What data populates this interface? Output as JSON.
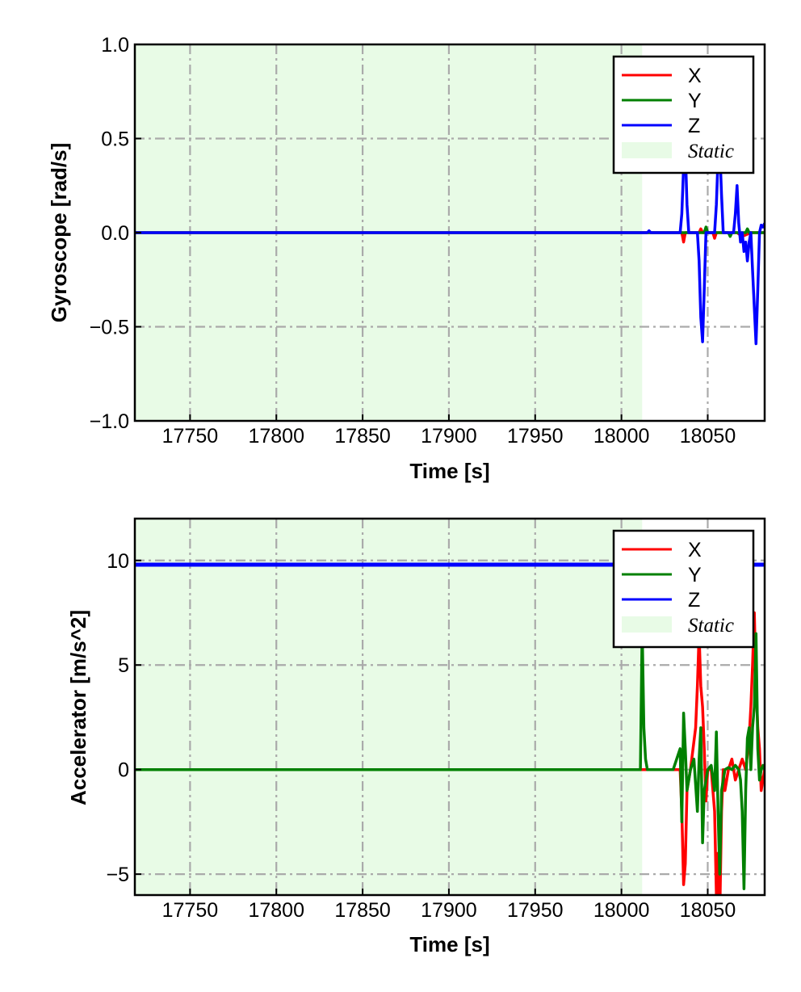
{
  "chart_data": [
    {
      "type": "line",
      "xlabel": "Time [s]",
      "ylabel": "Gyroscope [rad/s]",
      "xlim": [
        17718,
        18083
      ],
      "ylim": [
        -1.0,
        1.0
      ],
      "x_ticks": [
        17750,
        17800,
        17850,
        17900,
        17950,
        18000,
        18050
      ],
      "y_ticks": [
        -1.0,
        -0.5,
        0.0,
        0.5,
        1.0
      ],
      "y_tick_labels": [
        "−1.0",
        "−0.5",
        "0.0",
        "0.5",
        "1.0"
      ],
      "grid": true,
      "legend_position": "top-right",
      "static_region": {
        "label": "Static",
        "x": [
          17718,
          18012
        ],
        "color": "#e8fbe6"
      },
      "series": [
        {
          "name": "X",
          "color": "#ff0000",
          "x": [
            17718,
            18012,
            18030,
            18035,
            18036,
            18037,
            18045,
            18046,
            18047,
            18053,
            18054,
            18055,
            18060,
            18067,
            18070,
            18075,
            18080,
            18083
          ],
          "y": [
            0.0,
            0.0,
            0.0,
            0.0,
            -0.05,
            0.0,
            0.0,
            0.02,
            0.0,
            0.0,
            -0.03,
            0.0,
            0.0,
            0.0,
            -0.02,
            0.0,
            0.0,
            0.0
          ]
        },
        {
          "name": "Y",
          "color": "#008000",
          "x": [
            17718,
            18012,
            18030,
            18048,
            18049,
            18050,
            18062,
            18063,
            18064,
            18072,
            18073,
            18074,
            18083
          ],
          "y": [
            0.0,
            0.0,
            0.0,
            0.0,
            0.03,
            0.0,
            0.0,
            -0.02,
            0.0,
            0.0,
            0.02,
            0.0,
            0.0
          ]
        },
        {
          "name": "Z",
          "color": "#0000ff",
          "x": [
            17718,
            18012,
            18015,
            18016,
            18017,
            18034,
            18035,
            18036,
            18037,
            18038,
            18039,
            18044,
            18045,
            18046,
            18047,
            18048,
            18049,
            18054,
            18055,
            18056,
            18057,
            18058,
            18059,
            18065,
            18066,
            18067,
            18068,
            18069,
            18070,
            18071,
            18072,
            18073,
            18074,
            18075,
            18076,
            18077,
            18078,
            18079,
            18080,
            18081,
            18082,
            18083
          ],
          "y": [
            0.0,
            0.0,
            0.0,
            0.01,
            0.0,
            0.0,
            0.1,
            0.35,
            0.45,
            0.15,
            0.0,
            0.0,
            -0.15,
            -0.45,
            -0.58,
            -0.3,
            0.0,
            0.0,
            0.15,
            0.4,
            0.45,
            0.2,
            0.0,
            0.0,
            0.1,
            0.25,
            0.05,
            -0.05,
            0.0,
            -0.1,
            -0.05,
            -0.15,
            -0.05,
            0.0,
            -0.2,
            -0.4,
            -0.59,
            -0.3,
            0.0,
            0.04,
            0.03,
            0.05
          ]
        }
      ]
    },
    {
      "type": "line",
      "xlabel": "Time [s]",
      "ylabel": "Accelerator [m/s^2]",
      "xlim": [
        17718,
        18083
      ],
      "ylim": [
        -6.0,
        12.0
      ],
      "x_ticks": [
        17750,
        17800,
        17850,
        17900,
        17950,
        18000,
        18050
      ],
      "y_ticks": [
        -5,
        0,
        5,
        10
      ],
      "y_tick_labels": [
        "−5",
        "0",
        "5",
        "10"
      ],
      "grid": true,
      "legend_position": "top-right",
      "static_region": {
        "label": "Static",
        "x": [
          17718,
          18012
        ],
        "color": "#e8fbe6"
      },
      "series": [
        {
          "name": "X",
          "color": "#ff0000",
          "x": [
            17718,
            18012,
            18030,
            18034,
            18035,
            18036,
            18037,
            18038,
            18040,
            18043,
            18044,
            18045,
            18046,
            18047,
            18048,
            18049,
            18050,
            18052,
            18054,
            18055,
            18056,
            18057,
            18058,
            18059,
            18060,
            18062,
            18064,
            18066,
            18068,
            18070,
            18072,
            18074,
            18075,
            18076,
            18077,
            18078,
            18079,
            18080,
            18081,
            18082,
            18083
          ],
          "y": [
            0.0,
            0.0,
            0.0,
            0.0,
            -2.0,
            -5.5,
            -4.5,
            -1.0,
            0.0,
            2.0,
            4.0,
            6.5,
            4.0,
            3.0,
            1.0,
            -1.5,
            0.0,
            0.0,
            -2.0,
            -6.0,
            -4.0,
            -7.0,
            -2.0,
            0.0,
            -1.0,
            0.0,
            0.5,
            -0.5,
            0.0,
            0.5,
            0.0,
            1.5,
            3.0,
            5.0,
            7.5,
            4.0,
            2.0,
            1.0,
            -1.0,
            -0.5,
            0.0
          ]
        },
        {
          "name": "Y",
          "color": "#008000",
          "x": [
            17718,
            18011,
            18012,
            18013,
            18014,
            18015,
            18020,
            18030,
            18034,
            18035,
            18036,
            18037,
            18038,
            18040,
            18042,
            18044,
            18045,
            18046,
            18047,
            18048,
            18050,
            18052,
            18054,
            18055,
            18056,
            18057,
            18058,
            18060,
            18062,
            18064,
            18066,
            18068,
            18069,
            18070,
            18071,
            18072,
            18073,
            18074,
            18075,
            18076,
            18077,
            18078,
            18079,
            18080,
            18081,
            18082,
            18083
          ],
          "y": [
            0.0,
            0.0,
            6.8,
            2.0,
            0.5,
            0.0,
            0.0,
            0.0,
            1.0,
            -2.5,
            2.7,
            1.0,
            -1.0,
            0.0,
            0.5,
            -2.0,
            0.5,
            2.0,
            -3.5,
            -1.0,
            0.0,
            0.2,
            -1.0,
            1.8,
            -2.0,
            -5.0,
            -1.0,
            0.0,
            0.1,
            0.0,
            0.2,
            0.0,
            -0.5,
            -2.0,
            -5.7,
            -1.0,
            1.5,
            2.0,
            0.0,
            2.0,
            3.0,
            6.5,
            1.0,
            -0.5,
            0.0,
            0.2,
            0.0
          ]
        },
        {
          "name": "Z",
          "color": "#0000ff",
          "x": [
            17718,
            18083
          ],
          "y": [
            9.8,
            9.8
          ]
        }
      ]
    }
  ]
}
